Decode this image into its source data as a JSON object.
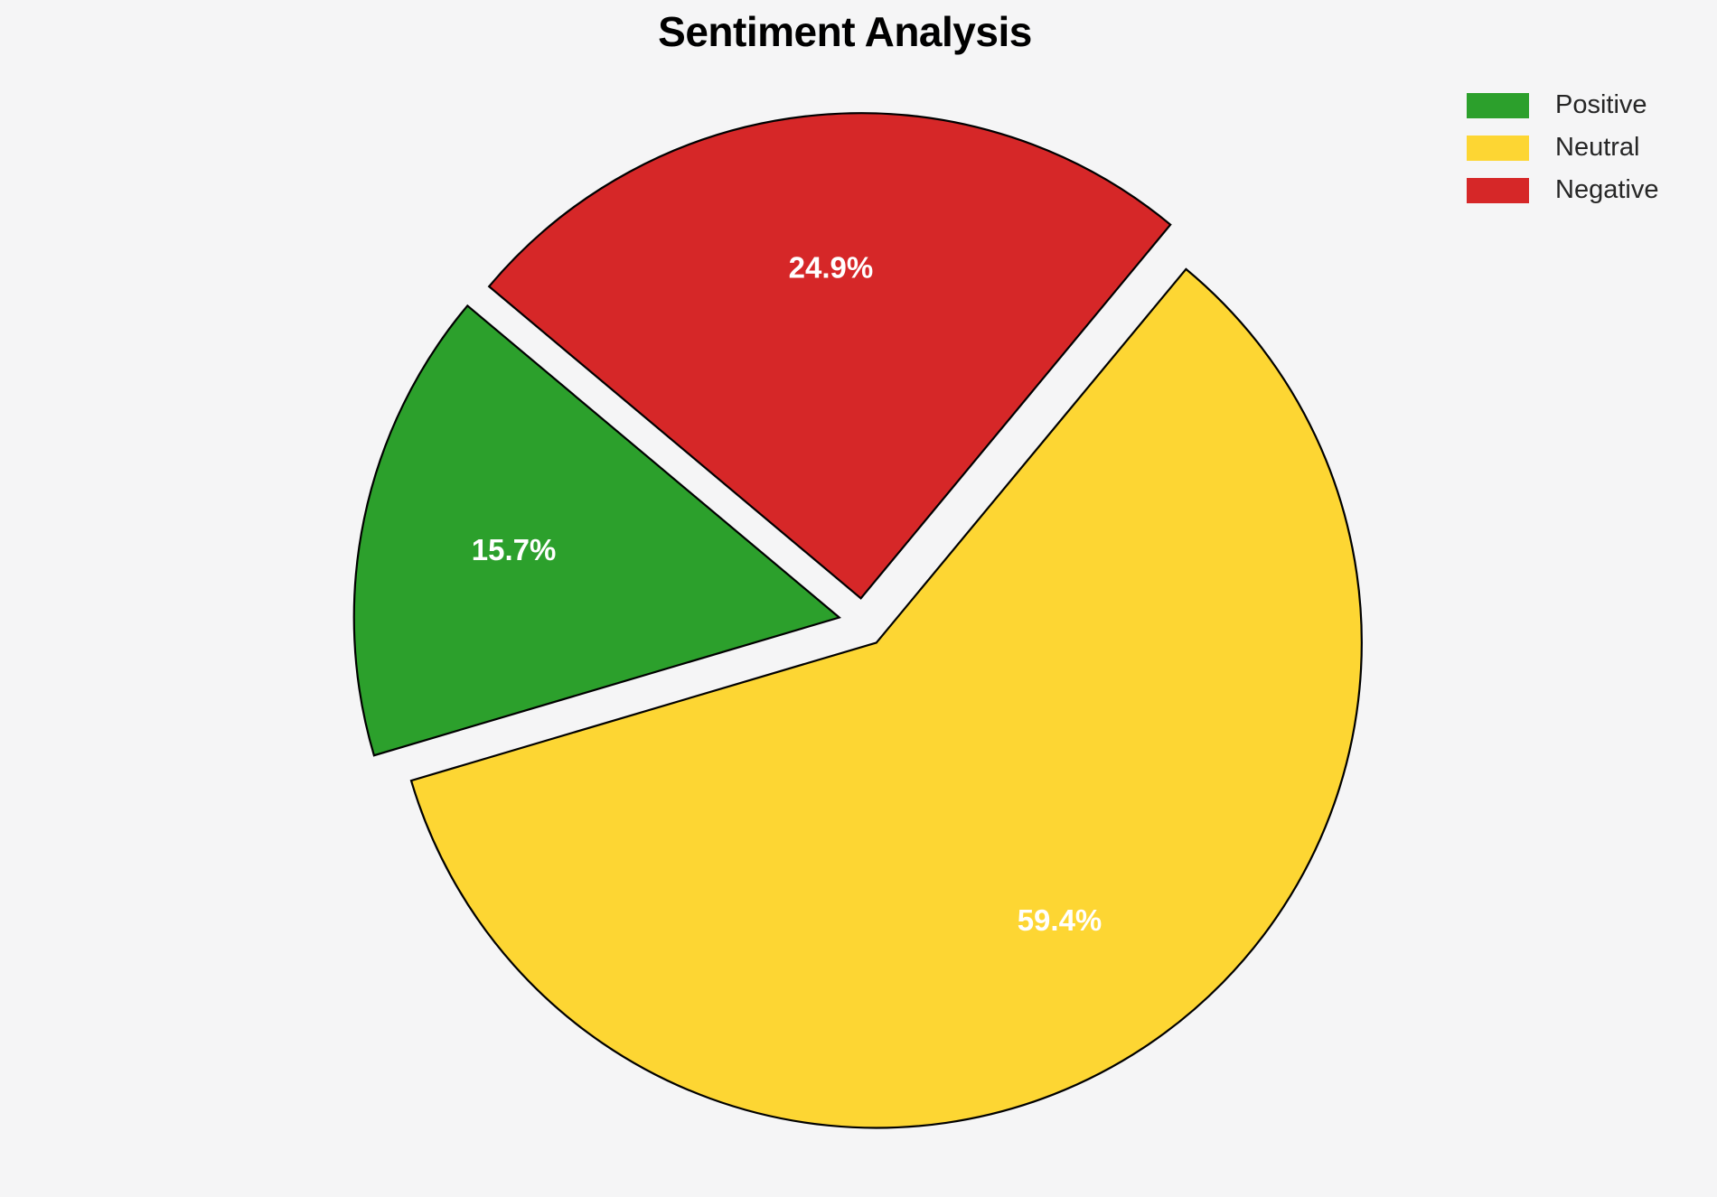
{
  "figure": {
    "background_color": "#f5f5f6"
  },
  "chart_data": {
    "type": "pie",
    "title": "Sentiment Analysis",
    "labels": [
      "Positive",
      "Neutral",
      "Negative"
    ],
    "values": [
      15.7,
      59.4,
      24.9
    ],
    "pct_labels": [
      "15.7%",
      "59.4%",
      "24.9%"
    ],
    "colors": [
      "#2ca02c",
      "#fdd633",
      "#d62728"
    ],
    "edge_color": "#000000",
    "pct_label_color": "#ffffff",
    "title_color": "#000000",
    "legend_text_color": "#262626",
    "start_angle_deg": 140,
    "counterclockwise": true,
    "explode": [
      0.05,
      0.05,
      0.05
    ],
    "pct_label_distance": 0.685,
    "legend": {
      "position": "upper right",
      "entries": [
        "Positive",
        "Neutral",
        "Negative"
      ]
    }
  }
}
